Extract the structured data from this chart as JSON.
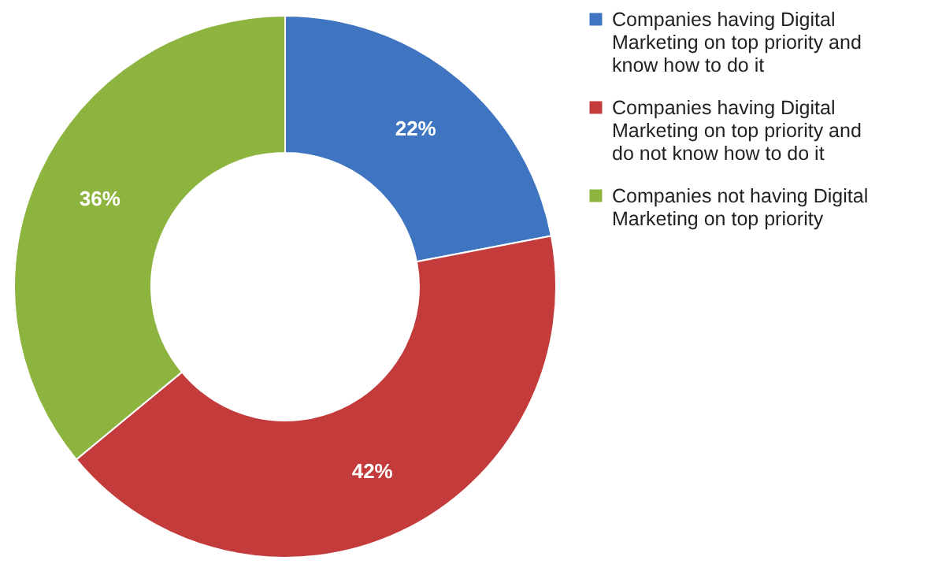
{
  "chart_data": {
    "type": "donut",
    "categories": [
      "Companies having Digital Marketing on top priority and know how to do it",
      "Companies having Digital Marketing on top priority and do not know how to do it",
      "Companies not having Digital Marketing on top priority"
    ],
    "values": [
      22,
      42,
      36
    ],
    "value_labels": [
      "22%",
      "42%",
      "36%"
    ],
    "colors": [
      "#3e74c0",
      "#c33b3b",
      "#8cb43f"
    ],
    "legend": "right"
  }
}
